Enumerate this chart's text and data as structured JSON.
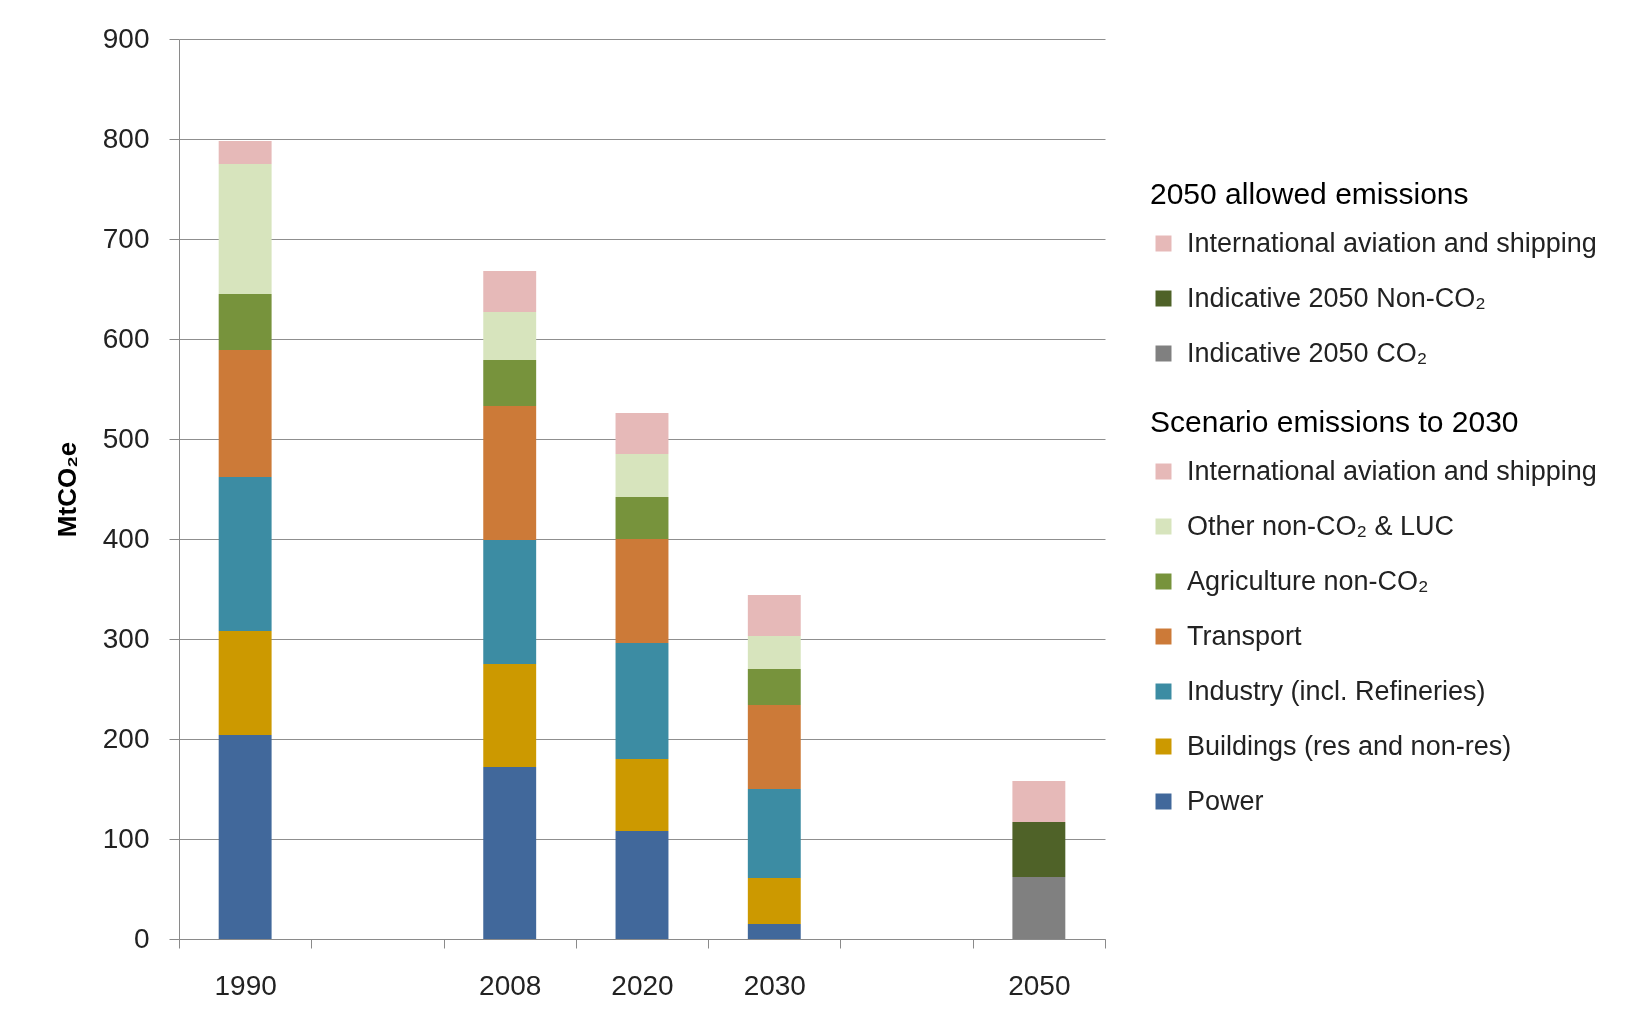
{
  "chart_data": {
    "type": "bar",
    "stacked": true,
    "ylabel": "MtCO₂e",
    "legend_title": [
      "2050 allowed emissions",
      "Scenario emissions to 2030"
    ],
    "categories": [
      "1990",
      null,
      "2008",
      "2020",
      "2030",
      null,
      "2050"
    ],
    "series": [
      {
        "name": "Indicative 2050 CO₂",
        "color": "#808080",
        "values": [
          null,
          null,
          null,
          null,
          null,
          null,
          62
        ]
      },
      {
        "name": "Indicative 2050 Non-CO₂",
        "color": "#4f6228",
        "values": [
          null,
          null,
          null,
          null,
          null,
          null,
          55
        ]
      },
      {
        "name": "International aviation and shipping",
        "color": "#e6b9b8",
        "values": [
          null,
          null,
          null,
          null,
          null,
          null,
          41
        ]
      },
      {
        "name": "Power",
        "color": "#41689b",
        "values": [
          204,
          null,
          172,
          108,
          15,
          null,
          null
        ]
      },
      {
        "name": "Buildings (res and non-res)",
        "color": "#cc9900",
        "values": [
          104,
          null,
          103,
          72,
          46,
          null,
          null
        ]
      },
      {
        "name": "Industry (incl. Refineries)",
        "color": "#3c8ca3",
        "values": [
          154,
          null,
          124,
          116,
          89,
          null,
          null
        ]
      },
      {
        "name": "Transport",
        "color": "#cc7a38",
        "values": [
          127,
          null,
          134,
          104,
          84,
          null,
          null
        ]
      },
      {
        "name": "Agriculture non-CO₂",
        "color": "#77933c",
        "values": [
          56,
          null,
          46,
          42,
          36,
          null,
          null
        ]
      },
      {
        "name": "Other non-CO₂ & LUC",
        "color": "#d7e4bd",
        "values": [
          130,
          null,
          48,
          43,
          33,
          null,
          null
        ]
      },
      {
        "name": "International aviation and shipping",
        "color": "#e6b9b8",
        "values": [
          23,
          null,
          41,
          41,
          41,
          null,
          null
        ]
      }
    ],
    "ylim": [
      0,
      900
    ],
    "yticks": [
      0,
      100,
      200,
      300,
      400,
      500,
      600,
      700,
      800,
      900
    ],
    "grid": "y",
    "legend": "right"
  }
}
